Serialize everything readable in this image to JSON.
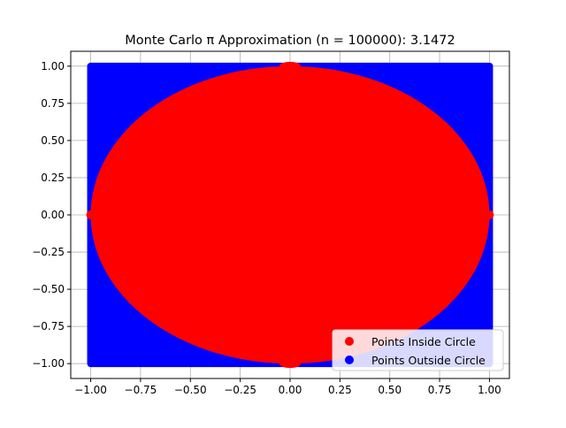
{
  "chart_data": {
    "type": "scatter",
    "title": "Monte Carlo π Approximation (n = 100000): 3.1472",
    "xlabel": "",
    "ylabel": "",
    "xlim": [
      -1.1,
      1.1
    ],
    "ylim": [
      -1.1,
      1.1
    ],
    "x_ticks": [
      -1.0,
      -0.75,
      -0.5,
      -0.25,
      0.0,
      0.25,
      0.5,
      0.75,
      1.0
    ],
    "x_tick_labels": [
      "−1.00",
      "−0.75",
      "−0.50",
      "−0.25",
      "0.00",
      "0.25",
      "0.50",
      "0.75",
      "1.00"
    ],
    "y_ticks": [
      -1.0,
      -0.75,
      -0.5,
      -0.25,
      0.0,
      0.25,
      0.5,
      0.75,
      1.0
    ],
    "y_tick_labels": [
      "−1.00",
      "−0.75",
      "−0.50",
      "−0.25",
      "0.00",
      "0.25",
      "0.50",
      "0.75",
      "1.00"
    ],
    "grid": true,
    "legend_position": "lower-right",
    "n_points": 100000,
    "pi_estimate": 3.1472,
    "series": [
      {
        "name": "Points Inside Circle",
        "color": "#ff0000",
        "region": "x^2 + y^2 <= 1",
        "x_range": [
          -1,
          1
        ],
        "y_range": [
          -1,
          1
        ]
      },
      {
        "name": "Points Outside Circle",
        "color": "#0000ff",
        "region": "x^2 + y^2 > 1",
        "x_range": [
          -1,
          1
        ],
        "y_range": [
          -1,
          1
        ]
      }
    ]
  }
}
